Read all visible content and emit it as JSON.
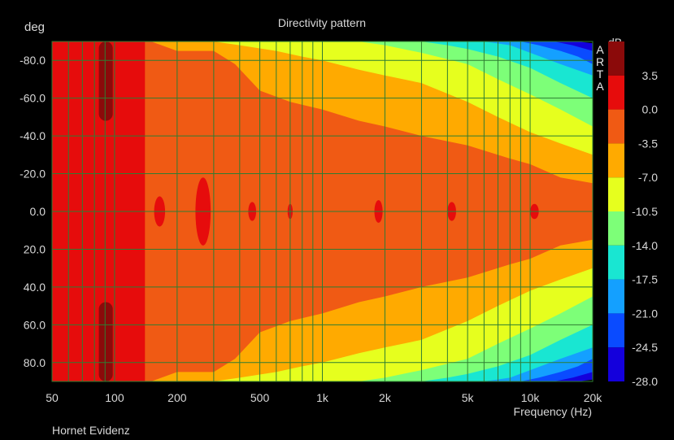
{
  "chart_data": {
    "type": "heatmap",
    "title": "Directivity pattern",
    "ylabel": "deg",
    "xlabel": "Frequency (Hz)",
    "footer": "Hornet Evidenz",
    "watermark": [
      "A",
      "R",
      "T",
      "A"
    ],
    "x_scale": "log",
    "xlim": [
      50,
      20000
    ],
    "ylim": [
      -90,
      90
    ],
    "y_reversed": true,
    "x_ticks": [
      {
        "value": 50,
        "label": "50"
      },
      {
        "value": 100,
        "label": "100"
      },
      {
        "value": 200,
        "label": "200"
      },
      {
        "value": 500,
        "label": "500"
      },
      {
        "value": 1000,
        "label": "1k"
      },
      {
        "value": 2000,
        "label": "2k"
      },
      {
        "value": 5000,
        "label": "5k"
      },
      {
        "value": 10000,
        "label": "10k"
      },
      {
        "value": 20000,
        "label": "20k"
      }
    ],
    "y_ticks": [
      {
        "value": -80,
        "label": "-80.0"
      },
      {
        "value": -60,
        "label": "-60.0"
      },
      {
        "value": -40,
        "label": "-40.0"
      },
      {
        "value": -20,
        "label": "-20.0"
      },
      {
        "value": 0,
        "label": "0.0"
      },
      {
        "value": 20,
        "label": "20.0"
      },
      {
        "value": 40,
        "label": "40.0"
      },
      {
        "value": 60,
        "label": "60.0"
      },
      {
        "value": 80,
        "label": "80.0"
      }
    ],
    "grid": true,
    "grid_color": "#2e7d32",
    "colorbar": {
      "unit": "dB",
      "range": [
        -28,
        7
      ],
      "ticks": [
        {
          "value": 3.5,
          "label": "3.5"
        },
        {
          "value": 0,
          "label": "0.0"
        },
        {
          "value": -3.5,
          "label": "-3.5"
        },
        {
          "value": -7,
          "label": "-7.0"
        },
        {
          "value": -10.5,
          "label": "-10.5"
        },
        {
          "value": -14,
          "label": "-14.0"
        },
        {
          "value": -17.5,
          "label": "-17.5"
        },
        {
          "value": -21,
          "label": "-21.0"
        },
        {
          "value": -24.5,
          "label": "-24.5"
        },
        {
          "value": -28,
          "label": "-28.0"
        }
      ],
      "bands": [
        {
          "from": 3.5,
          "to": 7,
          "color": "#8b0a0a"
        },
        {
          "from": 0,
          "to": 3.5,
          "color": "#e60c0c"
        },
        {
          "from": -3.5,
          "to": 0,
          "color": "#f05a14"
        },
        {
          "from": -7,
          "to": -3.5,
          "color": "#ffaa00"
        },
        {
          "from": -10.5,
          "to": -7,
          "color": "#e6ff1e"
        },
        {
          "from": -14,
          "to": -10.5,
          "color": "#7dff78"
        },
        {
          "from": -17.5,
          "to": -14,
          "color": "#19e6d2"
        },
        {
          "from": -21,
          "to": -17.5,
          "color": "#14a0ff"
        },
        {
          "from": -24.5,
          "to": -21,
          "color": "#0a4bff"
        },
        {
          "from": -28,
          "to": -24.5,
          "color": "#1400dc"
        }
      ]
    },
    "half_width_contours": [
      {
        "level_db": 0,
        "points": [
          [
            50,
            90
          ],
          [
            90,
            90
          ],
          [
            140,
            90
          ],
          [
            150,
            90
          ],
          [
            200,
            85
          ],
          [
            300,
            85
          ],
          [
            380,
            78
          ],
          [
            500,
            64
          ],
          [
            700,
            58
          ],
          [
            1000,
            54
          ],
          [
            1500,
            48
          ],
          [
            2000,
            45
          ],
          [
            3000,
            40
          ],
          [
            5000,
            35
          ],
          [
            8000,
            28
          ],
          [
            10000,
            25
          ],
          [
            14000,
            18
          ],
          [
            20000,
            15
          ]
        ]
      },
      {
        "level_db": -3.5,
        "points": [
          [
            50,
            90
          ],
          [
            300,
            90
          ],
          [
            400,
            88
          ],
          [
            600,
            85
          ],
          [
            800,
            82
          ],
          [
            1000,
            80
          ],
          [
            1500,
            75
          ],
          [
            2000,
            72
          ],
          [
            3000,
            68
          ],
          [
            5000,
            58
          ],
          [
            7000,
            50
          ],
          [
            10000,
            42
          ],
          [
            14000,
            36
          ],
          [
            20000,
            30
          ]
        ]
      },
      {
        "level_db": -7,
        "points": [
          [
            50,
            90
          ],
          [
            1000,
            90
          ],
          [
            1500,
            90
          ],
          [
            2000,
            88
          ],
          [
            3000,
            84
          ],
          [
            5000,
            78
          ],
          [
            7000,
            70
          ],
          [
            10000,
            62
          ],
          [
            14000,
            54
          ],
          [
            20000,
            45
          ]
        ]
      },
      {
        "level_db": -10.5,
        "points": [
          [
            50,
            90
          ],
          [
            3000,
            90
          ],
          [
            4000,
            88
          ],
          [
            5000,
            86
          ],
          [
            7000,
            82
          ],
          [
            10000,
            76
          ],
          [
            14000,
            68
          ],
          [
            20000,
            60
          ]
        ]
      },
      {
        "level_db": -14,
        "points": [
          [
            50,
            90
          ],
          [
            6000,
            90
          ],
          [
            8000,
            88
          ],
          [
            10000,
            84
          ],
          [
            14000,
            78
          ],
          [
            20000,
            72
          ]
        ]
      },
      {
        "level_db": -17.5,
        "points": [
          [
            50,
            90
          ],
          [
            9000,
            90
          ],
          [
            11000,
            88
          ],
          [
            14000,
            85
          ],
          [
            17000,
            82
          ],
          [
            20000,
            78
          ]
        ]
      },
      {
        "level_db": -21,
        "points": [
          [
            50,
            90
          ],
          [
            13000,
            90
          ],
          [
            16000,
            88
          ],
          [
            20000,
            85
          ]
        ]
      },
      {
        "level_db": -24.5,
        "points": [
          [
            50,
            90
          ],
          [
            17000,
            90
          ],
          [
            20000,
            89
          ]
        ]
      }
    ],
    "red_regions": [
      {
        "f_from": 50,
        "f_to": 140,
        "deg_half_width": 90
      },
      {
        "f_from": 155,
        "f_to": 175,
        "deg_half_width": 8
      },
      {
        "f_from": 245,
        "f_to": 290,
        "deg_half_width": 18
      },
      {
        "f_from": 440,
        "f_to": 480,
        "deg_half_width": 5
      },
      {
        "f_from": 680,
        "f_to": 720,
        "deg_half_width": 4
      },
      {
        "f_from": 1780,
        "f_to": 1950,
        "deg_half_width": 6
      },
      {
        "f_from": 4000,
        "f_to": 4400,
        "deg_half_width": 5
      },
      {
        "f_from": 10000,
        "f_to": 11000,
        "deg_half_width": 4
      }
    ],
    "darkred_regions": [
      {
        "f_from": 84,
        "f_to": 98,
        "deg_from": -90,
        "deg_to": -48
      },
      {
        "f_from": 84,
        "f_to": 98,
        "deg_from": 48,
        "deg_to": 90
      }
    ]
  }
}
